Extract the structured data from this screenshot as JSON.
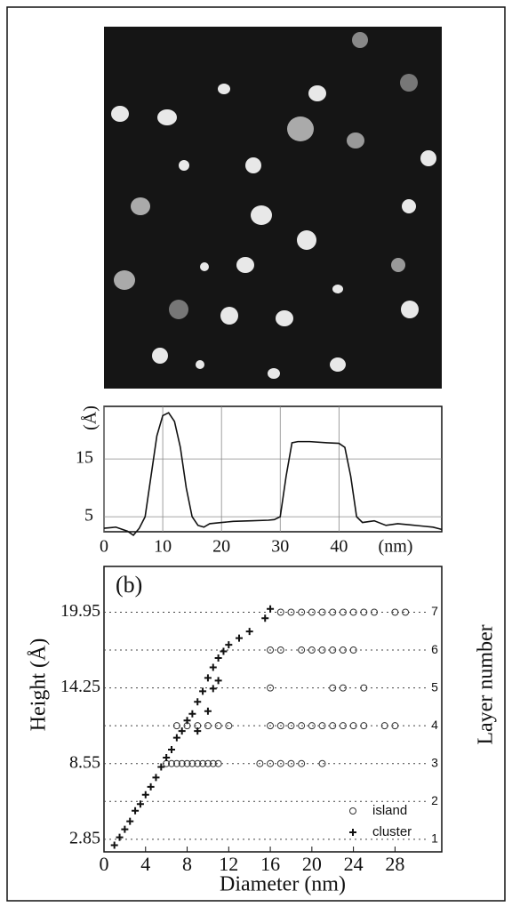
{
  "chart_data": [
    {
      "type": "line",
      "ylabel": "(Å)",
      "xlabel": "(nm)",
      "x": [
        0,
        2,
        4,
        5,
        6,
        7,
        8,
        9,
        10,
        11,
        12,
        13,
        14,
        15,
        16,
        17,
        18,
        20,
        22,
        25,
        28,
        29,
        30,
        31,
        32,
        33,
        35,
        38,
        40,
        41,
        42,
        43,
        44,
        46,
        48,
        50,
        52,
        54,
        56,
        57.5
      ],
      "values": [
        3,
        3.2,
        2.5,
        1.8,
        3,
        5,
        12,
        19,
        22.5,
        23,
        21.5,
        17,
        10,
        5,
        3.5,
        3.2,
        3.8,
        4,
        4.2,
        4.3,
        4.4,
        4.5,
        5,
        12,
        17.8,
        18,
        18,
        17.8,
        17.7,
        17,
        12,
        5,
        4,
        4.3,
        3.5,
        3.8,
        3.6,
        3.4,
        3.2,
        2.8
      ],
      "color": "#111111",
      "xlim": [
        0,
        57.5
      ],
      "ylim": [
        2.4,
        24.1
      ],
      "xticks": [
        0,
        10,
        20,
        30,
        40
      ],
      "yticks": [
        5,
        15
      ],
      "grid": true
    },
    {
      "type": "scatter",
      "annotation": "(b)",
      "xlabel": "Diameter (nm)",
      "ylabel": "Height (Å)",
      "y2label": "Layer number",
      "xlim": [
        0,
        32.5
      ],
      "ylim": [
        1.9,
        23.4
      ],
      "y2lim": [
        0.667,
        8.21
      ],
      "xticks": [
        0,
        4,
        8,
        12,
        16,
        20,
        24,
        28
      ],
      "yticks": [
        2.85,
        8.55,
        14.25,
        19.95
      ],
      "y2ticks": [
        1,
        2,
        3,
        4,
        5,
        6,
        7
      ],
      "grid": true,
      "legend": "lower right",
      "series": [
        {
          "name": "island",
          "marker": "circle",
          "color": "#333333",
          "x": [
            6,
            6.5,
            7,
            7.5,
            8,
            8.5,
            9,
            9.5,
            10,
            10.5,
            11,
            15,
            16,
            17,
            18,
            19,
            21,
            7,
            8,
            9,
            10,
            11,
            12,
            16,
            17,
            18,
            19,
            20,
            21,
            22,
            23,
            24,
            25,
            27,
            28,
            16,
            22,
            23,
            25,
            16,
            17,
            19,
            20,
            21,
            22,
            23,
            24,
            17,
            18,
            19,
            20,
            21,
            22,
            23,
            24,
            25,
            26,
            28,
            29
          ],
          "y": [
            8.55,
            8.55,
            8.55,
            8.55,
            8.55,
            8.55,
            8.55,
            8.55,
            8.55,
            8.55,
            8.55,
            8.55,
            8.55,
            8.55,
            8.55,
            8.55,
            8.55,
            11.4,
            11.4,
            11.4,
            11.4,
            11.4,
            11.4,
            11.4,
            11.4,
            11.4,
            11.4,
            11.4,
            11.4,
            11.4,
            11.4,
            11.4,
            11.4,
            11.4,
            11.4,
            14.25,
            14.25,
            14.25,
            14.25,
            17.1,
            17.1,
            17.1,
            17.1,
            17.1,
            17.1,
            17.1,
            17.1,
            19.95,
            19.95,
            19.95,
            19.95,
            19.95,
            19.95,
            19.95,
            19.95,
            19.95,
            19.95,
            19.95,
            19.95
          ]
        },
        {
          "name": "cluster",
          "marker": "plus",
          "color": "#111111",
          "x": [
            1,
            1.5,
            2,
            2.5,
            3,
            3.5,
            4,
            4.5,
            5,
            5.5,
            6,
            6.5,
            7,
            7.5,
            8,
            8.5,
            9,
            9.5,
            10,
            10.5,
            11,
            11.5,
            12,
            13,
            14,
            15.5,
            16,
            9,
            10,
            10.5,
            11
          ],
          "y": [
            2.4,
            3,
            3.6,
            4.2,
            5,
            5.5,
            6.2,
            6.8,
            7.5,
            8.3,
            9,
            9.6,
            10.5,
            11,
            11.8,
            12.3,
            13.2,
            14,
            15,
            15.8,
            16.5,
            17,
            17.5,
            18,
            18.5,
            19.5,
            20.2,
            11,
            12.5,
            14.2,
            14.8
          ]
        }
      ]
    }
  ]
}
